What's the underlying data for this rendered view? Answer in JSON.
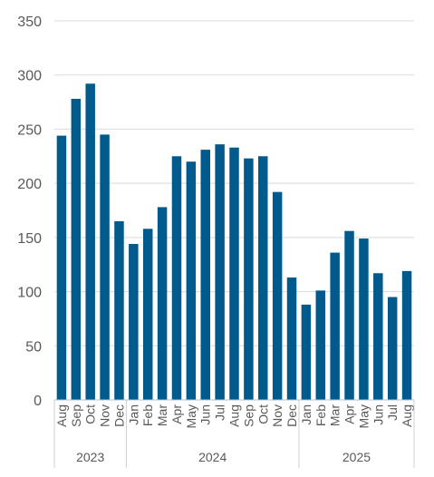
{
  "chart_data": {
    "type": "bar",
    "title": "",
    "xlabel": "",
    "ylabel": "",
    "ylim": [
      0,
      350
    ],
    "yticks": [
      0,
      50,
      100,
      150,
      200,
      250,
      300,
      350
    ],
    "grid": true,
    "bar_color": "#005a8c",
    "categories": [
      "Aug",
      "Sep",
      "Oct",
      "Nov",
      "Dec",
      "Jan",
      "Feb",
      "Mar",
      "Apr",
      "May",
      "Jun",
      "Jul",
      "Aug",
      "Sep",
      "Oct",
      "Nov",
      "Dec",
      "Jan",
      "Feb",
      "Mar",
      "Apr",
      "May",
      "Jun",
      "Jul",
      "Aug"
    ],
    "values": [
      244,
      278,
      292,
      245,
      165,
      144,
      158,
      178,
      225,
      220,
      231,
      236,
      233,
      223,
      225,
      192,
      113,
      88,
      101,
      136,
      156,
      149,
      117,
      95,
      119
    ],
    "year_groups": [
      {
        "label": "2023",
        "start": 0,
        "end": 4
      },
      {
        "label": "2024",
        "start": 5,
        "end": 16
      },
      {
        "label": "2025",
        "start": 17,
        "end": 24
      }
    ]
  }
}
